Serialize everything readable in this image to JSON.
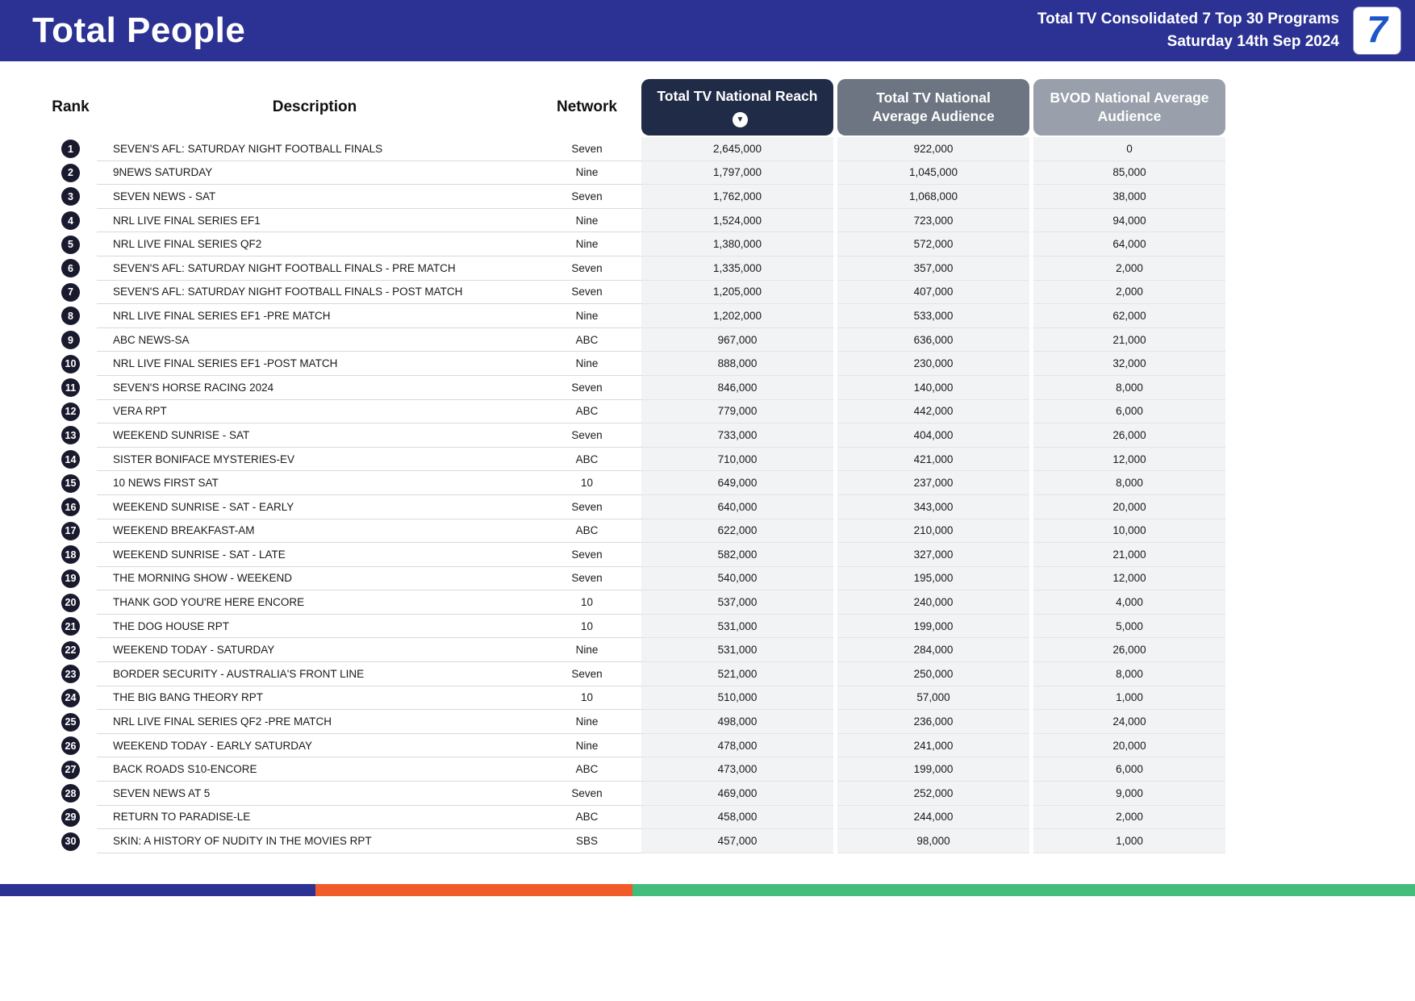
{
  "header": {
    "title": "Total People",
    "report_name": "Total TV Consolidated 7 Top 30 Programs",
    "report_date": "Saturday 14th Sep 2024",
    "logo_text": "7"
  },
  "table": {
    "columns": {
      "rank": "Rank",
      "description": "Description",
      "network": "Network",
      "total_tv_national_reach": "Total TV National Reach",
      "total_tv_national_average_audience": "Total TV National Average Audience",
      "bvod_national_average_audience": "BVOD National Average Audience"
    },
    "rows": [
      {
        "rank": 1,
        "description": "SEVEN'S AFL: SATURDAY NIGHT FOOTBALL FINALS",
        "network": "Seven",
        "reach": "2,645,000",
        "avg_audience": "922,000",
        "bvod_audience": "0"
      },
      {
        "rank": 2,
        "description": "9NEWS SATURDAY",
        "network": "Nine",
        "reach": "1,797,000",
        "avg_audience": "1,045,000",
        "bvod_audience": "85,000"
      },
      {
        "rank": 3,
        "description": "SEVEN NEWS - SAT",
        "network": "Seven",
        "reach": "1,762,000",
        "avg_audience": "1,068,000",
        "bvod_audience": "38,000"
      },
      {
        "rank": 4,
        "description": "NRL LIVE FINAL SERIES EF1",
        "network": "Nine",
        "reach": "1,524,000",
        "avg_audience": "723,000",
        "bvod_audience": "94,000"
      },
      {
        "rank": 5,
        "description": "NRL LIVE FINAL SERIES QF2",
        "network": "Nine",
        "reach": "1,380,000",
        "avg_audience": "572,000",
        "bvod_audience": "64,000"
      },
      {
        "rank": 6,
        "description": "SEVEN'S AFL: SATURDAY NIGHT FOOTBALL FINALS - PRE MATCH",
        "network": "Seven",
        "reach": "1,335,000",
        "avg_audience": "357,000",
        "bvod_audience": "2,000"
      },
      {
        "rank": 7,
        "description": "SEVEN'S AFL: SATURDAY NIGHT FOOTBALL FINALS - POST MATCH",
        "network": "Seven",
        "reach": "1,205,000",
        "avg_audience": "407,000",
        "bvod_audience": "2,000"
      },
      {
        "rank": 8,
        "description": "NRL LIVE FINAL SERIES EF1 -PRE MATCH",
        "network": "Nine",
        "reach": "1,202,000",
        "avg_audience": "533,000",
        "bvod_audience": "62,000"
      },
      {
        "rank": 9,
        "description": "ABC NEWS-SA",
        "network": "ABC",
        "reach": "967,000",
        "avg_audience": "636,000",
        "bvod_audience": "21,000"
      },
      {
        "rank": 10,
        "description": "NRL LIVE FINAL SERIES EF1 -POST MATCH",
        "network": "Nine",
        "reach": "888,000",
        "avg_audience": "230,000",
        "bvod_audience": "32,000"
      },
      {
        "rank": 11,
        "description": "SEVEN'S HORSE RACING 2024",
        "network": "Seven",
        "reach": "846,000",
        "avg_audience": "140,000",
        "bvod_audience": "8,000"
      },
      {
        "rank": 12,
        "description": "VERA RPT",
        "network": "ABC",
        "reach": "779,000",
        "avg_audience": "442,000",
        "bvod_audience": "6,000"
      },
      {
        "rank": 13,
        "description": "WEEKEND SUNRISE - SAT",
        "network": "Seven",
        "reach": "733,000",
        "avg_audience": "404,000",
        "bvod_audience": "26,000"
      },
      {
        "rank": 14,
        "description": "SISTER BONIFACE MYSTERIES-EV",
        "network": "ABC",
        "reach": "710,000",
        "avg_audience": "421,000",
        "bvod_audience": "12,000"
      },
      {
        "rank": 15,
        "description": "10 NEWS FIRST SAT",
        "network": "10",
        "reach": "649,000",
        "avg_audience": "237,000",
        "bvod_audience": "8,000"
      },
      {
        "rank": 16,
        "description": "WEEKEND SUNRISE - SAT - EARLY",
        "network": "Seven",
        "reach": "640,000",
        "avg_audience": "343,000",
        "bvod_audience": "20,000"
      },
      {
        "rank": 17,
        "description": "WEEKEND BREAKFAST-AM",
        "network": "ABC",
        "reach": "622,000",
        "avg_audience": "210,000",
        "bvod_audience": "10,000"
      },
      {
        "rank": 18,
        "description": "WEEKEND SUNRISE - SAT - LATE",
        "network": "Seven",
        "reach": "582,000",
        "avg_audience": "327,000",
        "bvod_audience": "21,000"
      },
      {
        "rank": 19,
        "description": "THE MORNING SHOW - WEEKEND",
        "network": "Seven",
        "reach": "540,000",
        "avg_audience": "195,000",
        "bvod_audience": "12,000"
      },
      {
        "rank": 20,
        "description": "THANK GOD YOU'RE HERE ENCORE",
        "network": "10",
        "reach": "537,000",
        "avg_audience": "240,000",
        "bvod_audience": "4,000"
      },
      {
        "rank": 21,
        "description": "THE DOG HOUSE RPT",
        "network": "10",
        "reach": "531,000",
        "avg_audience": "199,000",
        "bvod_audience": "5,000"
      },
      {
        "rank": 22,
        "description": "WEEKEND TODAY - SATURDAY",
        "network": "Nine",
        "reach": "531,000",
        "avg_audience": "284,000",
        "bvod_audience": "26,000"
      },
      {
        "rank": 23,
        "description": "BORDER SECURITY - AUSTRALIA'S FRONT LINE",
        "network": "Seven",
        "reach": "521,000",
        "avg_audience": "250,000",
        "bvod_audience": "8,000"
      },
      {
        "rank": 24,
        "description": "THE BIG BANG THEORY RPT",
        "network": "10",
        "reach": "510,000",
        "avg_audience": "57,000",
        "bvod_audience": "1,000"
      },
      {
        "rank": 25,
        "description": "NRL LIVE FINAL SERIES QF2 -PRE MATCH",
        "network": "Nine",
        "reach": "498,000",
        "avg_audience": "236,000",
        "bvod_audience": "24,000"
      },
      {
        "rank": 26,
        "description": "WEEKEND TODAY - EARLY SATURDAY",
        "network": "Nine",
        "reach": "478,000",
        "avg_audience": "241,000",
        "bvod_audience": "20,000"
      },
      {
        "rank": 27,
        "description": "BACK ROADS S10-ENCORE",
        "network": "ABC",
        "reach": "473,000",
        "avg_audience": "199,000",
        "bvod_audience": "6,000"
      },
      {
        "rank": 28,
        "description": "SEVEN NEWS AT 5",
        "network": "Seven",
        "reach": "469,000",
        "avg_audience": "252,000",
        "bvod_audience": "9,000"
      },
      {
        "rank": 29,
        "description": "RETURN TO PARADISE-LE",
        "network": "ABC",
        "reach": "458,000",
        "avg_audience": "244,000",
        "bvod_audience": "2,000"
      },
      {
        "rank": 30,
        "description": "SKIN: A HISTORY OF NUDITY IN THE MOVIES RPT",
        "network": "SBS",
        "reach": "457,000",
        "avg_audience": "98,000",
        "bvod_audience": "1,000"
      }
    ]
  },
  "icons": {
    "sort_descending": "▼"
  },
  "colors": {
    "topbar_bg": "#2B3293",
    "reach_header_bg": "#202C47",
    "avg_header_bg": "#6C7581",
    "bvod_header_bg": "#99A0AB",
    "rank_badge_bg": "#191A2E",
    "num_col_bg": "#F2F3F5",
    "row_line": "#D8D9DD",
    "logo_blue": "#1C56C9"
  },
  "footer": {
    "segments": [
      {
        "color": "#2B3293",
        "width_pct": 22.3
      },
      {
        "color": "#F15B2A",
        "width_pct": 22.4
      },
      {
        "color": "#43BD7C",
        "width_pct": 55.3
      }
    ]
  }
}
